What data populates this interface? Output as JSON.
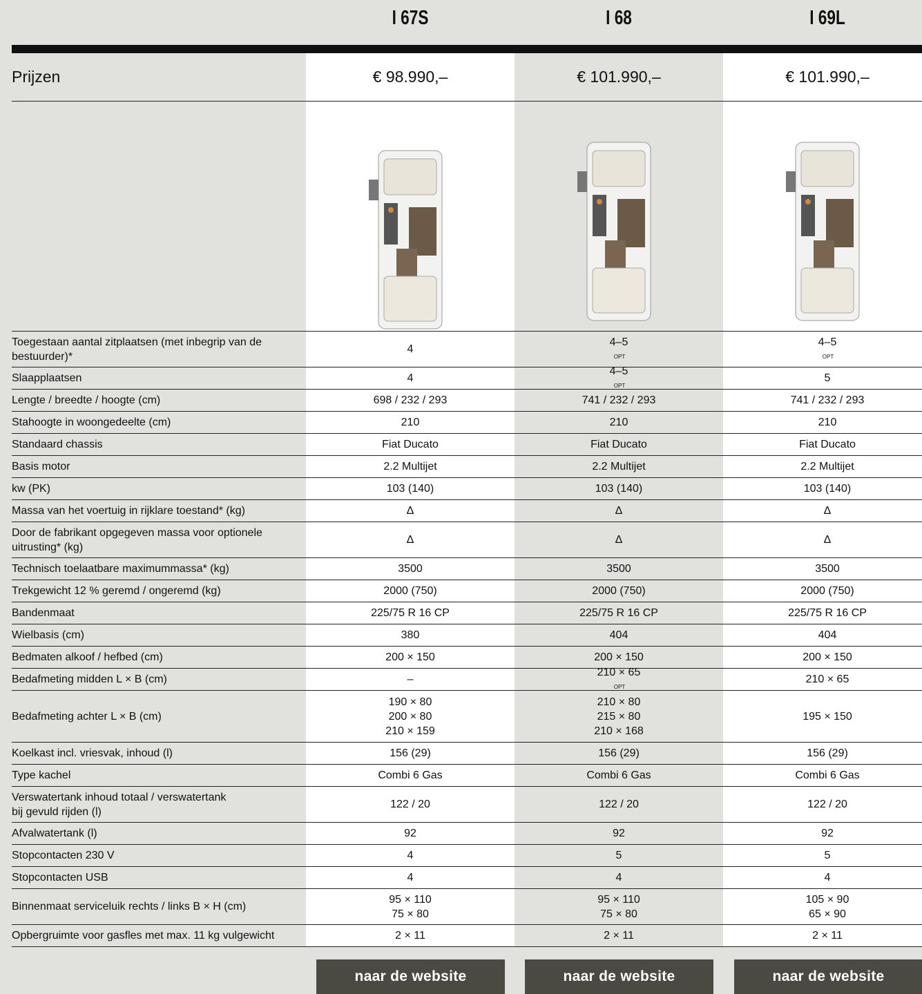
{
  "header": {
    "models": [
      "I 67S",
      "I 68",
      "I 69L"
    ]
  },
  "prices": {
    "label": "Prijzen",
    "values": [
      "€ 98.990,–",
      "€ 101.990,–",
      "€ 101.990,–"
    ]
  },
  "specs": [
    {
      "label": [
        "Toegestaan aantal zitplaatsen (met inbegrip van de",
        "bestuurder)*"
      ],
      "values": [
        "4",
        {
          "text": "4–5",
          "sup": "OPT"
        },
        {
          "text": "4–5",
          "sup": "OPT"
        }
      ]
    },
    {
      "label": "Slaapplaatsen",
      "values": [
        "4",
        {
          "text": "4–5",
          "sup": "OPT"
        },
        "5"
      ]
    },
    {
      "label": "Lengte / breedte / hoogte (cm)",
      "values": [
        "698 / 232 / 293",
        "741 / 232 / 293",
        "741 / 232 / 293"
      ]
    },
    {
      "label": "Stahoogte in woongedeelte (cm)",
      "values": [
        "210",
        "210",
        "210"
      ]
    },
    {
      "label": "Standaard chassis",
      "values": [
        "Fiat Ducato",
        "Fiat Ducato",
        "Fiat Ducato"
      ]
    },
    {
      "label": "Basis motor",
      "values": [
        "2.2 Multijet",
        "2.2 Multijet",
        "2.2 Multijet"
      ]
    },
    {
      "label": "kw (PK)",
      "values": [
        "103 (140)",
        "103 (140)",
        "103 (140)"
      ]
    },
    {
      "label": "Massa van het voertuig in rijklare toestand* (kg)",
      "values": [
        "Δ",
        "Δ",
        "Δ"
      ]
    },
    {
      "label": [
        "Door de fabrikant opgegeven massa voor optionele",
        "uitrusting* (kg)"
      ],
      "values": [
        "Δ",
        "Δ",
        "Δ"
      ]
    },
    {
      "label": "Technisch toelaatbare maximummassa* (kg)",
      "values": [
        "3500",
        "3500",
        "3500"
      ]
    },
    {
      "label": "Trekgewicht 12 % geremd / ongeremd (kg)",
      "values": [
        "2000 (750)",
        "2000 (750)",
        "2000 (750)"
      ]
    },
    {
      "label": "Bandenmaat",
      "values": [
        "225/75 R 16 CP",
        "225/75 R 16 CP",
        "225/75 R 16 CP"
      ]
    },
    {
      "label": "Wielbasis (cm)",
      "values": [
        "380",
        "404",
        "404"
      ]
    },
    {
      "label": "Bedmaten alkoof / hefbed (cm)",
      "values": [
        "200 × 150",
        "200 × 150",
        "200 × 150"
      ]
    },
    {
      "label": "Bedafmeting midden L × B (cm)",
      "values": [
        "–",
        {
          "text": "210 × 65",
          "sup": "OPT"
        },
        "210 × 65"
      ]
    },
    {
      "label": "Bedafmeting achter L × B (cm)",
      "values": [
        [
          "190 × 80",
          "200 × 80",
          "210 × 159"
        ],
        [
          "210 × 80",
          "215 × 80",
          "210 × 168"
        ],
        "195 × 150"
      ]
    },
    {
      "label": "Koelkast incl. vriesvak, inhoud (l)",
      "values": [
        "156 (29)",
        "156 (29)",
        "156 (29)"
      ]
    },
    {
      "label": "Type kachel",
      "values": [
        "Combi 6 Gas",
        "Combi 6 Gas",
        "Combi 6 Gas"
      ]
    },
    {
      "label": [
        "Verswatertank inhoud totaal / verswatertank",
        "bij gevuld rijden (l)"
      ],
      "values": [
        "122 / 20",
        "122 / 20",
        "122 / 20"
      ]
    },
    {
      "label": "Afvalwatertank (l)",
      "values": [
        "92",
        "92",
        "92"
      ]
    },
    {
      "label": "Stopcontacten 230 V",
      "values": [
        "4",
        "5",
        "5"
      ]
    },
    {
      "label": "Stopcontacten USB",
      "values": [
        "4",
        "4",
        "4"
      ]
    },
    {
      "label": "Binnenmaat serviceluik rechts / links B × H (cm)",
      "values": [
        [
          "95 × 110",
          "75 × 80"
        ],
        [
          "95 × 110",
          "75 × 80"
        ],
        [
          "105 × 90",
          "65 × 90"
        ]
      ]
    },
    {
      "label": "Opbergruimte voor gasfles met max. 11 kg vulgewicht",
      "values": [
        "2 × 11",
        "2 × 11",
        "2 × 11"
      ]
    }
  ],
  "buttons": [
    "naar de website",
    "naar de website",
    "naar de website"
  ]
}
